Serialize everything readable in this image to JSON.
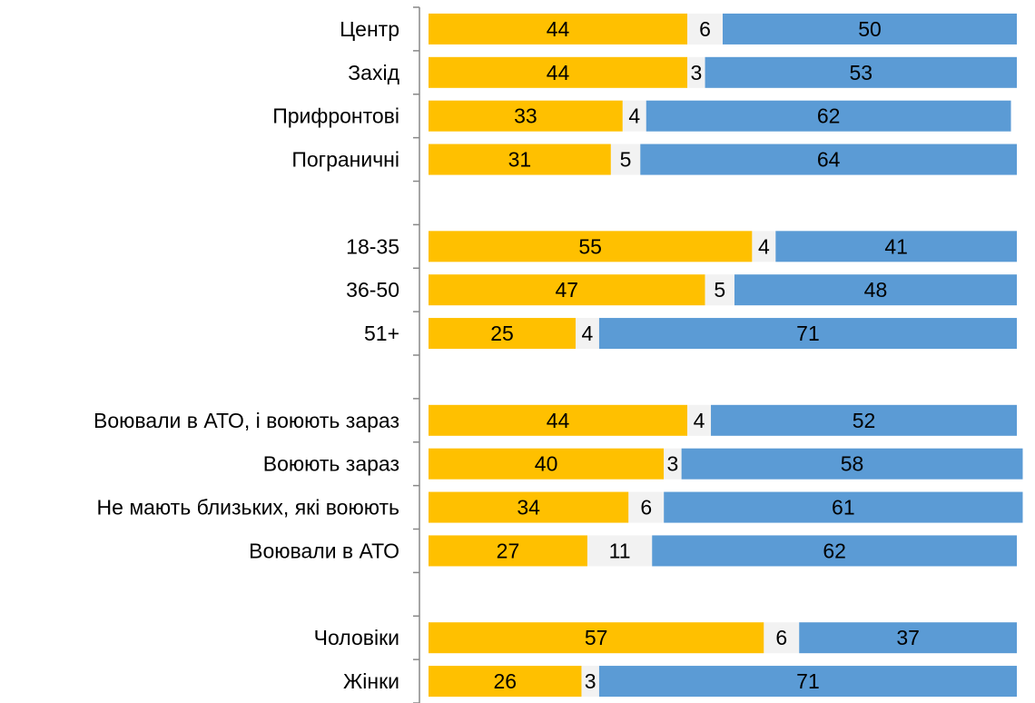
{
  "chart_data": {
    "type": "stacked_barh",
    "categories": [
      "Центр",
      "Захід",
      "Прифронтові",
      "Пограничні",
      null,
      "18-35",
      "36-50",
      "51+",
      null,
      "Воювали в АТО, і воюють зараз",
      "Воюють зараз",
      "Не мають близьких, які воюють",
      "Воювали в АТО",
      null,
      "Чоловіки",
      "Жінки"
    ],
    "series": [
      {
        "color": "#FFC000",
        "values": [
          44,
          44,
          33,
          31,
          null,
          55,
          47,
          25,
          null,
          44,
          40,
          34,
          27,
          null,
          57,
          26
        ]
      },
      {
        "color": "#F2F2F2",
        "values": [
          6,
          3,
          4,
          5,
          null,
          4,
          5,
          4,
          null,
          4,
          3,
          6,
          11,
          null,
          6,
          3
        ]
      },
      {
        "color": "#5B9BD5",
        "values": [
          50,
          53,
          62,
          64,
          null,
          41,
          48,
          71,
          null,
          52,
          58,
          61,
          62,
          null,
          37,
          71
        ]
      }
    ],
    "xlim": [
      0,
      100
    ]
  }
}
